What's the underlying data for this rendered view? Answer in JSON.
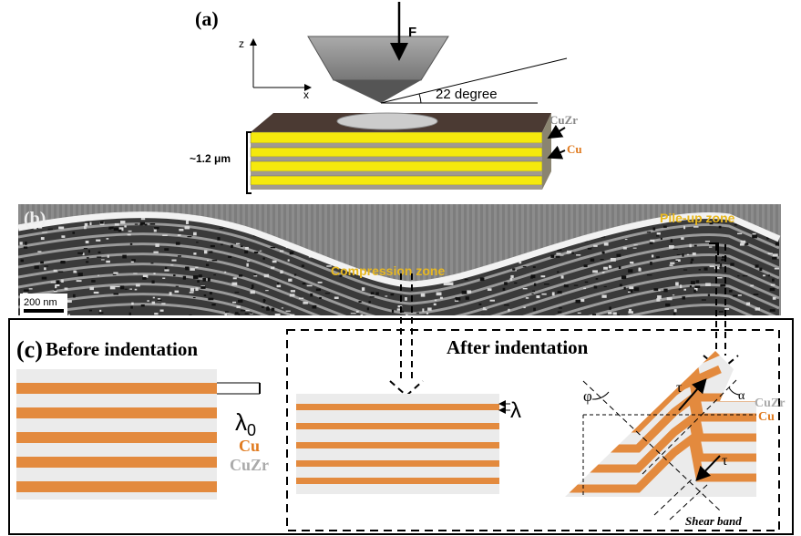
{
  "panel_a": {
    "label": "(a)",
    "force": "F",
    "axis_z": "z",
    "axis_x": "x",
    "angle": "22 degree",
    "layer_cuzr": "CuZr",
    "layer_cu": "Cu",
    "thickness": "~1.2 μm"
  },
  "panel_b": {
    "label": "(b)",
    "pileup": "Pile-up zone",
    "compression": "Compression zone",
    "scale_bar": "200 nm"
  },
  "panel_c": {
    "label": "(c)",
    "before": {
      "title": "Before indentation",
      "wavelength": "λ",
      "wavelength_sub": "0",
      "cu": "Cu",
      "cuzr": "CuZr"
    },
    "after": {
      "title": "After indentation",
      "wavelength": "λ",
      "phi": "φ",
      "tau_1": "τ",
      "alpha": "α",
      "cuzr": "CuZr",
      "cu": "Cu",
      "tau_2": "τ",
      "shear_band": "Shear band"
    }
  }
}
